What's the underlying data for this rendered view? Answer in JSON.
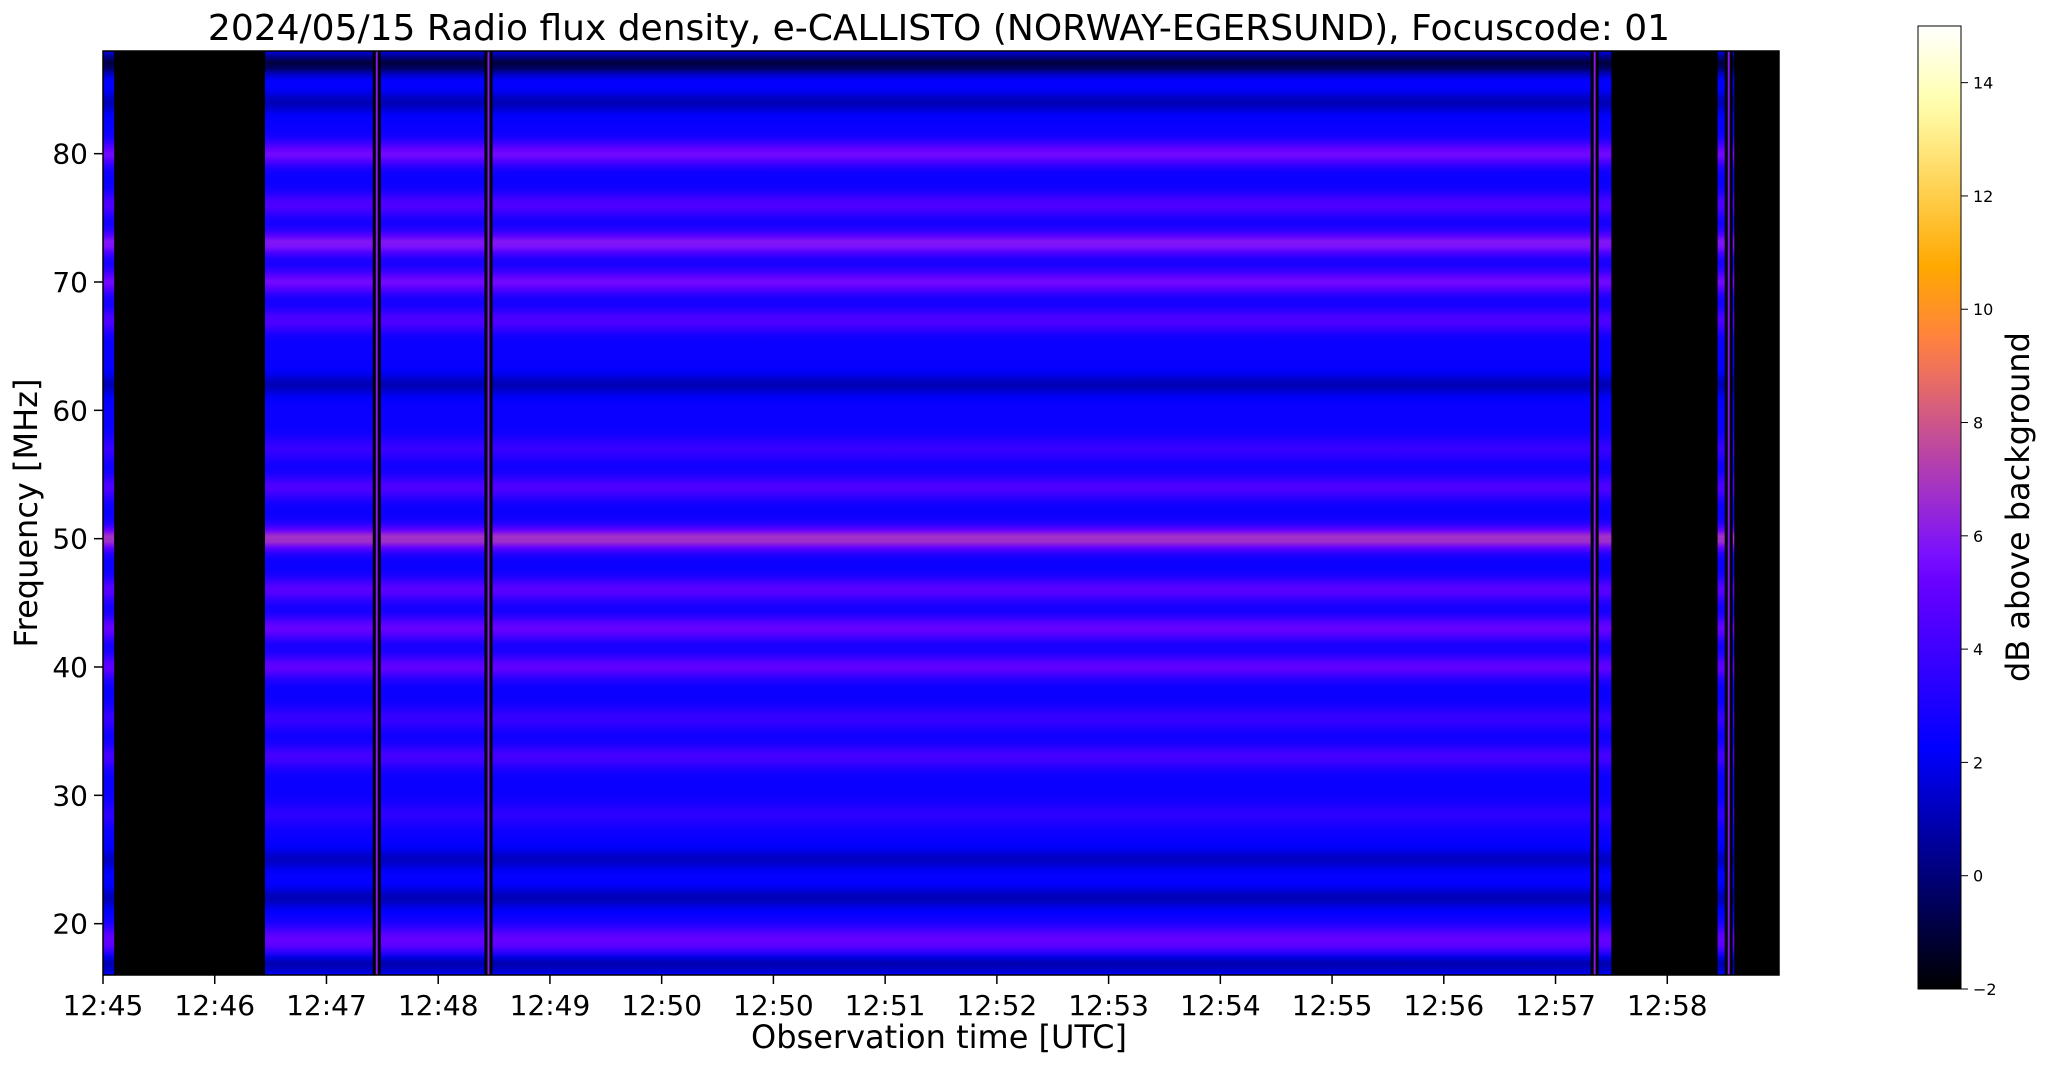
{
  "chart_data": {
    "type": "heatmap",
    "title": "2024/05/15  Radio flux density, e-CALLISTO (NORWAY-EGERSUND), Focuscode: 01",
    "xlabel": "Observation time [UTC]",
    "ylabel": "Frequency [MHz]",
    "colorbar_label": "dB above background",
    "colormap": "gnuplot2",
    "x_tick_labels": [
      "12:45",
      "12:46",
      "12:47",
      "12:48",
      "12:49",
      "12:50",
      "12:50",
      "12:51",
      "12:52",
      "12:53",
      "12:54",
      "12:55",
      "12:56",
      "12:57",
      "12:58"
    ],
    "xlim_minutes": [
      0,
      15
    ],
    "ylim": [
      16,
      88
    ],
    "y_ticks": [
      20,
      30,
      40,
      50,
      60,
      70,
      80
    ],
    "colorbar_range": [
      -2,
      15
    ],
    "colorbar_ticks": [
      -2,
      0,
      2,
      4,
      6,
      8,
      10,
      12,
      14
    ],
    "missing_data_minutes": [
      [
        0.1,
        1.45
      ],
      [
        13.5,
        14.45
      ],
      [
        14.6,
        15.0
      ]
    ],
    "vertical_artifact_minutes": [
      2.45,
      3.45,
      13.35,
      14.55
    ],
    "background_level_db": 2.5,
    "bright_bands": [
      {
        "freq_mhz": 80,
        "level_db": 5.5
      },
      {
        "freq_mhz": 76,
        "level_db": 4.5
      },
      {
        "freq_mhz": 73,
        "level_db": 6.0
      },
      {
        "freq_mhz": 70,
        "level_db": 5.5
      },
      {
        "freq_mhz": 67,
        "level_db": 4.5
      },
      {
        "freq_mhz": 57,
        "level_db": 3.8
      },
      {
        "freq_mhz": 54,
        "level_db": 4.5
      },
      {
        "freq_mhz": 50,
        "level_db": 7.0
      },
      {
        "freq_mhz": 46,
        "level_db": 4.8
      },
      {
        "freq_mhz": 43,
        "level_db": 5.2
      },
      {
        "freq_mhz": 40,
        "level_db": 5.0
      },
      {
        "freq_mhz": 36,
        "level_db": 3.8
      },
      {
        "freq_mhz": 33,
        "level_db": 4.2
      },
      {
        "freq_mhz": 28.5,
        "level_db": 3.5
      },
      {
        "freq_mhz": 19,
        "level_db": 4.5
      },
      {
        "freq_mhz": 18,
        "level_db": 4.0
      }
    ],
    "dark_bands": [
      {
        "freq_mhz": 87,
        "level_db": -1.0
      },
      {
        "freq_mhz": 84,
        "level_db": 1.0
      },
      {
        "freq_mhz": 62,
        "level_db": 1.0
      },
      {
        "freq_mhz": 25,
        "level_db": 1.2
      },
      {
        "freq_mhz": 22,
        "level_db": 1.0
      },
      {
        "freq_mhz": 17,
        "level_db": 0.5
      }
    ]
  }
}
